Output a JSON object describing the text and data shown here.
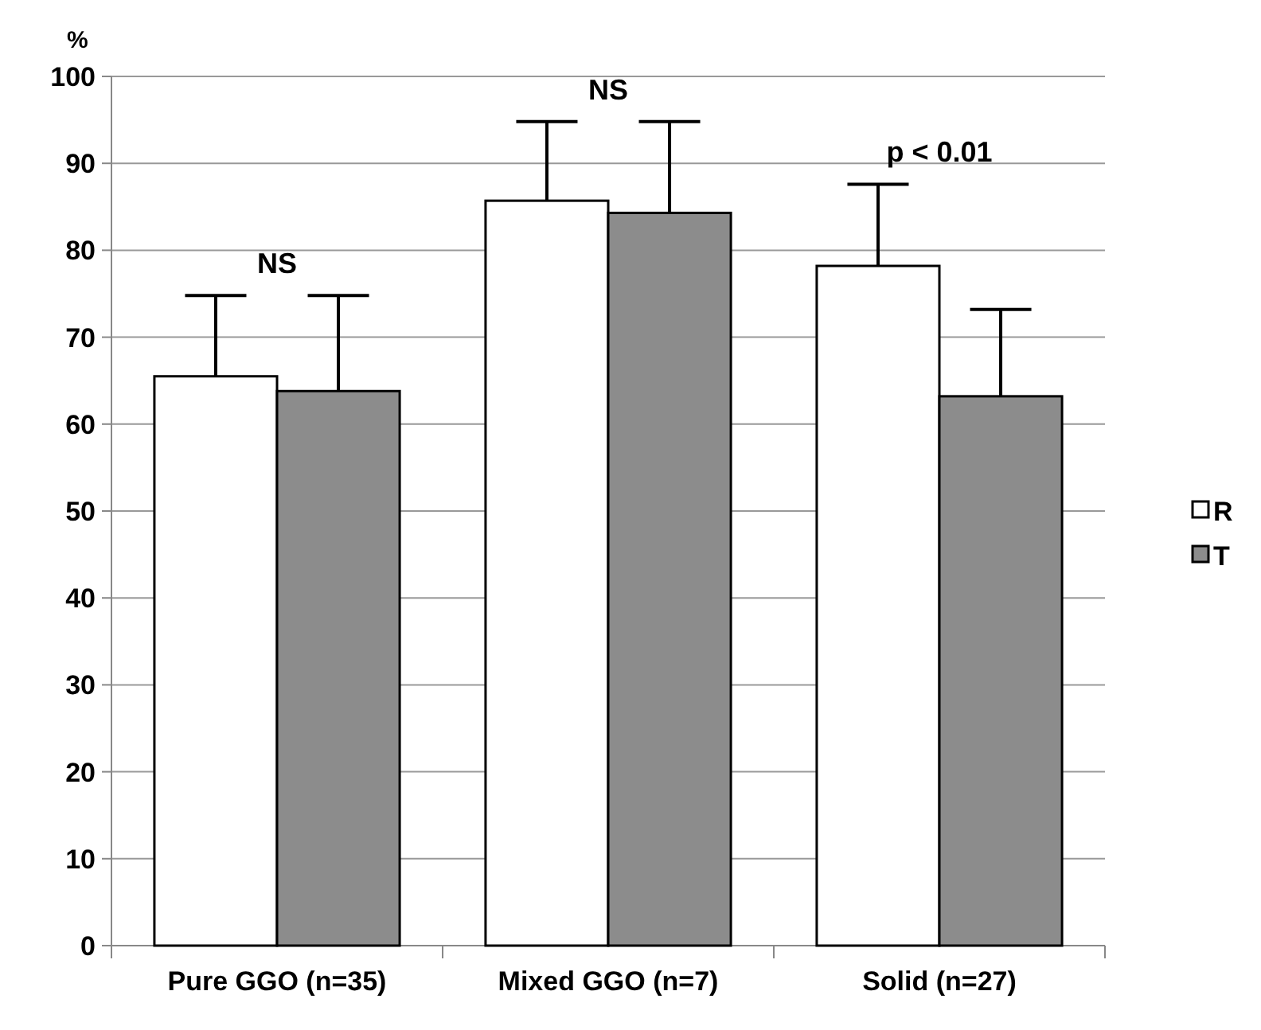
{
  "chart_data": {
    "type": "bar",
    "ylabel": "%",
    "categories": [
      "Pure GGO (n=35)",
      "Mixed GGO (n=7)",
      "Solid (n=27)"
    ],
    "series": [
      {
        "name": "R",
        "color": "#ffffff",
        "values": [
          65.5,
          85.7,
          78.2
        ],
        "errors": [
          [
            65.5,
            74.8
          ],
          [
            85.7,
            94.8
          ],
          [
            78.2,
            87.6
          ]
        ]
      },
      {
        "name": "T",
        "color": "#8c8c8c",
        "values": [
          63.8,
          84.3,
          63.2
        ],
        "errors": [
          [
            63.8,
            74.8
          ],
          [
            84.3,
            94.8
          ],
          [
            63.2,
            73.2
          ]
        ]
      }
    ],
    "ylim": [
      0,
      100
    ],
    "yticks": [
      0,
      10,
      20,
      30,
      40,
      50,
      60,
      70,
      80,
      90,
      100
    ],
    "grid": "y",
    "legend": "right",
    "annotations": [
      "NS",
      "NS",
      "p < 0.01"
    ]
  }
}
